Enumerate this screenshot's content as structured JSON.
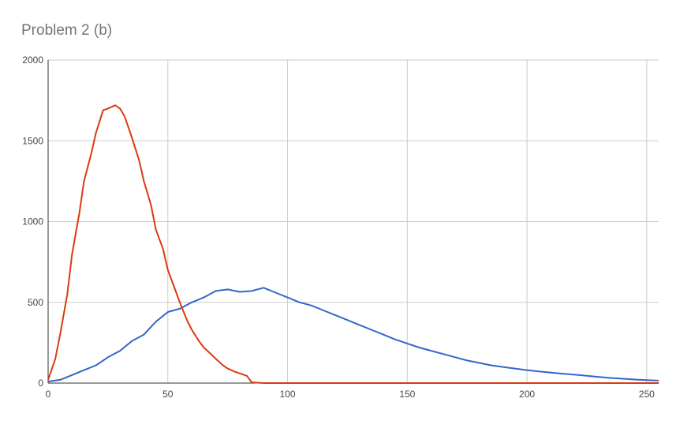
{
  "chart_data": {
    "type": "line",
    "title": "Problem 2 (b)",
    "xlabel": "",
    "ylabel": "",
    "xlim": [
      0,
      255
    ],
    "ylim": [
      0,
      2000
    ],
    "x_ticks": [
      0,
      50,
      100,
      150,
      200,
      250
    ],
    "y_ticks": [
      0,
      500,
      1000,
      1500,
      2000
    ],
    "grid": true,
    "legend": "none",
    "series": [
      {
        "color": "#3366cc",
        "x": [
          0,
          5,
          10,
          15,
          20,
          25,
          30,
          35,
          40,
          45,
          50,
          55,
          60,
          65,
          70,
          75,
          80,
          85,
          90,
          95,
          100,
          105,
          110,
          115,
          120,
          125,
          130,
          135,
          140,
          145,
          150,
          155,
          160,
          165,
          170,
          175,
          180,
          185,
          190,
          195,
          200,
          205,
          210,
          215,
          220,
          225,
          230,
          235,
          240,
          245,
          250,
          255
        ],
        "values": [
          10,
          20,
          50,
          80,
          110,
          160,
          200,
          260,
          300,
          380,
          440,
          460,
          500,
          530,
          570,
          580,
          565,
          570,
          590,
          560,
          530,
          500,
          480,
          450,
          420,
          390,
          360,
          330,
          300,
          270,
          245,
          220,
          200,
          180,
          160,
          140,
          125,
          110,
          100,
          90,
          80,
          72,
          65,
          58,
          52,
          45,
          38,
          32,
          27,
          22,
          18,
          15
        ]
      },
      {
        "color": "#dc3912",
        "x": [
          0,
          3,
          5,
          8,
          10,
          13,
          15,
          18,
          20,
          23,
          25,
          28,
          30,
          32,
          35,
          38,
          40,
          43,
          45,
          48,
          50,
          53,
          55,
          58,
          60,
          63,
          65,
          68,
          70,
          73,
          75,
          78,
          80,
          83,
          85,
          90,
          100,
          150,
          200,
          255
        ],
        "values": [
          20,
          150,
          300,
          550,
          800,
          1050,
          1250,
          1420,
          1550,
          1690,
          1700,
          1720,
          1700,
          1650,
          1520,
          1380,
          1250,
          1100,
          950,
          830,
          700,
          580,
          500,
          390,
          330,
          260,
          220,
          180,
          150,
          110,
          90,
          70,
          60,
          45,
          5,
          0,
          0,
          0,
          0,
          0
        ]
      }
    ]
  }
}
